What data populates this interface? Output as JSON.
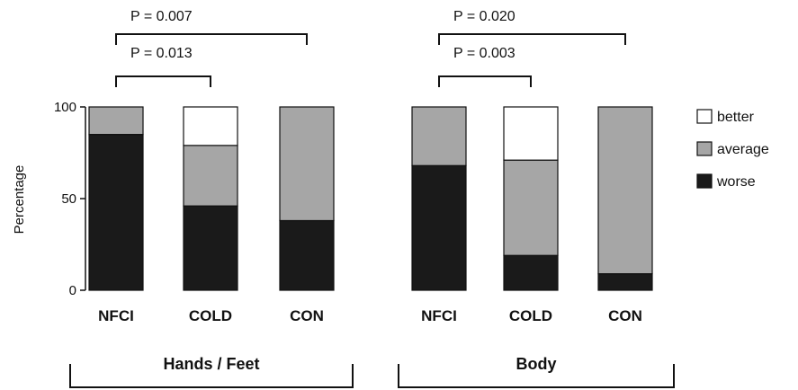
{
  "chart_data": {
    "type": "bar",
    "stacked": true,
    "ylabel": "Percentage",
    "ylim": [
      0,
      100
    ],
    "yticks": [
      0,
      50,
      100
    ],
    "grid": false,
    "legend_position": "right",
    "colors": {
      "better": "#ffffff",
      "average": "#a6a6a6",
      "worse": "#1a1a1a",
      "outline": "#111111"
    },
    "series": [
      {
        "name": "better"
      },
      {
        "name": "average"
      },
      {
        "name": "worse"
      }
    ],
    "groups": [
      {
        "label": "Hands / Feet",
        "categories": [
          "NFCI",
          "COLD",
          "CON"
        ],
        "worse": [
          85,
          46,
          38
        ],
        "average": [
          15,
          33,
          62
        ],
        "better": [
          0,
          21,
          0
        ]
      },
      {
        "label": "Body",
        "categories": [
          "NFCI",
          "COLD",
          "CON"
        ],
        "worse": [
          68,
          19,
          9
        ],
        "average": [
          32,
          52,
          91
        ],
        "better": [
          0,
          29,
          0
        ]
      }
    ],
    "comparisons": [
      {
        "group": 0,
        "from": 0,
        "to": 1,
        "label": "P = 0.013"
      },
      {
        "group": 0,
        "from": 0,
        "to": 2,
        "label": "P = 0.007"
      },
      {
        "group": 1,
        "from": 0,
        "to": 1,
        "label": "P = 0.003"
      },
      {
        "group": 1,
        "from": 0,
        "to": 2,
        "label": "P = 0.020"
      }
    ]
  }
}
